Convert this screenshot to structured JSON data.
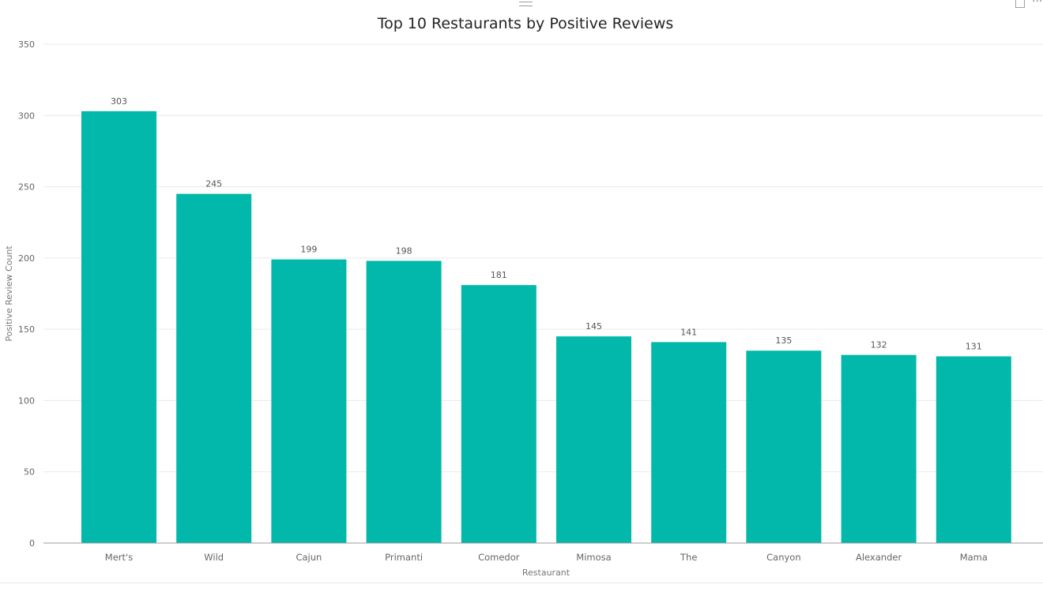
{
  "toolbar": {
    "handle_icon": "drag-handle-icon",
    "focus_icon": "focus-mode-icon",
    "more_icon": "more-options-icon",
    "more_glyph": "···"
  },
  "chart_data": {
    "type": "bar",
    "title": "Top 10 Restaurants by Positive Reviews",
    "xlabel": "Restaurant",
    "ylabel": "Positive Review Count",
    "categories": [
      "Mert's",
      "Wild",
      "Cajun",
      "Primanti",
      "Comedor",
      "Mimosa",
      "The",
      "Canyon",
      "Alexander",
      "Mama"
    ],
    "values": [
      303,
      245,
      199,
      198,
      181,
      145,
      141,
      135,
      132,
      131
    ],
    "ylim": [
      0,
      350
    ],
    "yticks": [
      0,
      50,
      100,
      150,
      200,
      250,
      300,
      350
    ],
    "grid": true,
    "data_labels": true,
    "bar_color": "#01b8aa"
  }
}
